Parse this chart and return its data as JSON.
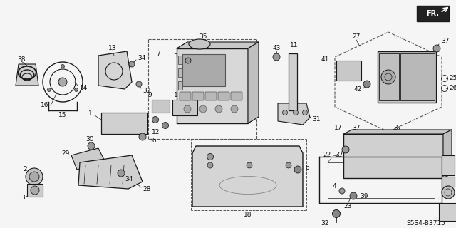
{
  "bg_color": "#f5f5f5",
  "diagram_code": "S5S4-B3715",
  "line_color": "#1a1a1a",
  "label_color": "#111111",
  "figsize": [
    6.4,
    3.2
  ],
  "dpi": 100
}
